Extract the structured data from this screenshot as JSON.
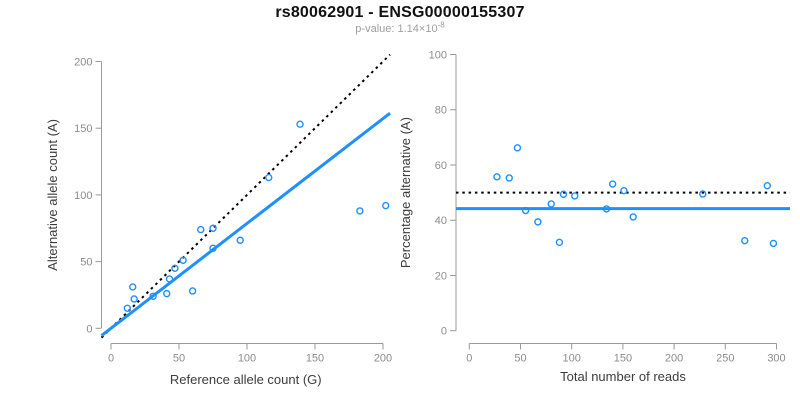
{
  "figure": {
    "title": "rs80062901 - ENSG00000155307",
    "subtitle": {
      "text": "p-value: 1.14×10",
      "exponent": "-8"
    }
  },
  "colors": {
    "accent_blue": "#1E90FF",
    "dotted_black": "#000000",
    "axis_line_gray": "#9a9a9a",
    "tick_label_gray": "#8c8c8c",
    "axis_title_dark": "#3c3c3c",
    "title_black": "#111111",
    "subtitle_gray": "#9e9e9e"
  },
  "chart_data": [
    {
      "type": "scatter",
      "name": "allele-count-scatter",
      "xlabel": "Reference allele count (G)",
      "ylabel": "Alternative allele count (A)",
      "xlim": [
        0,
        200
      ],
      "ylim": [
        0,
        200
      ],
      "xticks": [
        0,
        50,
        100,
        150,
        200
      ],
      "yticks": [
        0,
        50,
        100,
        150,
        200
      ],
      "grid": false,
      "points": [
        [
          12,
          15
        ],
        [
          17,
          22
        ],
        [
          16,
          31
        ],
        [
          31,
          24
        ],
        [
          41,
          26
        ],
        [
          43,
          37
        ],
        [
          47,
          45
        ],
        [
          53,
          51
        ],
        [
          60,
          28
        ],
        [
          66,
          74
        ],
        [
          75,
          60
        ],
        [
          75,
          75
        ],
        [
          95,
          66
        ],
        [
          116,
          113
        ],
        [
          139,
          153
        ],
        [
          183,
          88
        ],
        [
          202,
          92
        ]
      ],
      "lines": [
        {
          "name": "identity-line",
          "kind": "abline",
          "slope": 1,
          "intercept": 0,
          "style": "dotted",
          "color": "#000000"
        },
        {
          "name": "regression-line",
          "kind": "abline",
          "slope": 0.786,
          "intercept": 0,
          "style": "solid",
          "color": "#1E90FF"
        }
      ]
    },
    {
      "type": "scatter",
      "name": "percentage-reads-scatter",
      "xlabel": "Total number of reads",
      "ylabel": "Percentage alternative (A)",
      "xlim": [
        0,
        300
      ],
      "ylim": [
        0,
        100
      ],
      "xticks": [
        0,
        50,
        100,
        150,
        200,
        250,
        300
      ],
      "yticks": [
        0,
        20,
        40,
        60,
        80,
        100
      ],
      "grid": false,
      "points": [
        [
          27,
          55.7
        ],
        [
          39,
          55.3
        ],
        [
          47,
          66.2
        ],
        [
          55,
          43.5
        ],
        [
          67,
          39.4
        ],
        [
          80,
          45.9
        ],
        [
          88,
          32.0
        ],
        [
          92,
          49.4
        ],
        [
          103,
          48.8
        ],
        [
          134,
          44.1
        ],
        [
          140,
          53.1
        ],
        [
          151,
          50.7
        ],
        [
          160,
          41.2
        ],
        [
          228,
          49.5
        ],
        [
          269,
          32.6
        ],
        [
          291,
          52.5
        ],
        [
          297,
          31.6
        ]
      ],
      "lines": [
        {
          "name": "fifty-percent-line",
          "kind": "hline",
          "y": 50,
          "style": "dotted",
          "color": "#000000"
        },
        {
          "name": "mean-percentage-line",
          "kind": "hline",
          "y": 44.2,
          "style": "solid",
          "color": "#1E90FF"
        }
      ]
    }
  ]
}
